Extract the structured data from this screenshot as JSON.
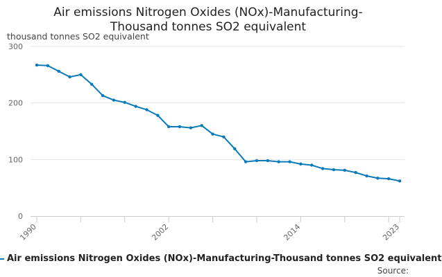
{
  "chart_data": {
    "type": "line",
    "title": "Air emissions Nitrogen Oxides (NOx)-Manufacturing-Thousand tonnes SO2 equivalent",
    "title_lines": [
      "Air emissions Nitrogen Oxides (NOx)-Manufacturing-",
      "Thousand tonnes SO2 equivalent"
    ],
    "ylabel": "thousand tonnes SO2 equivalent",
    "xlabel": "",
    "x": [
      1990,
      1991,
      1992,
      1993,
      1994,
      1995,
      1996,
      1997,
      1998,
      1999,
      2000,
      2001,
      2002,
      2003,
      2004,
      2005,
      2006,
      2007,
      2008,
      2009,
      2010,
      2011,
      2012,
      2013,
      2014,
      2015,
      2016,
      2017,
      2018,
      2019,
      2020,
      2021,
      2022,
      2023
    ],
    "series": [
      {
        "name": "Air emissions Nitrogen Oxides (NOx)-Manufacturing-Thousand tonnes SO2 equivalent",
        "color": "#0a7ab8",
        "values": [
          267,
          266,
          256,
          246,
          250,
          233,
          213,
          205,
          201,
          194,
          188,
          178,
          158,
          158,
          156,
          160,
          145,
          140,
          119,
          96,
          98,
          98,
          96,
          96,
          92,
          90,
          84,
          82,
          81,
          77,
          71,
          67,
          66,
          62
        ]
      }
    ],
    "ylim": [
      0,
      300
    ],
    "yticks": [
      0,
      100,
      200,
      300
    ],
    "xlim": [
      1990,
      2023
    ],
    "xtick_labels": [
      1990,
      2002,
      2014,
      2023
    ],
    "grid": true,
    "legend_position": "bottom"
  },
  "source_label": "Source:"
}
